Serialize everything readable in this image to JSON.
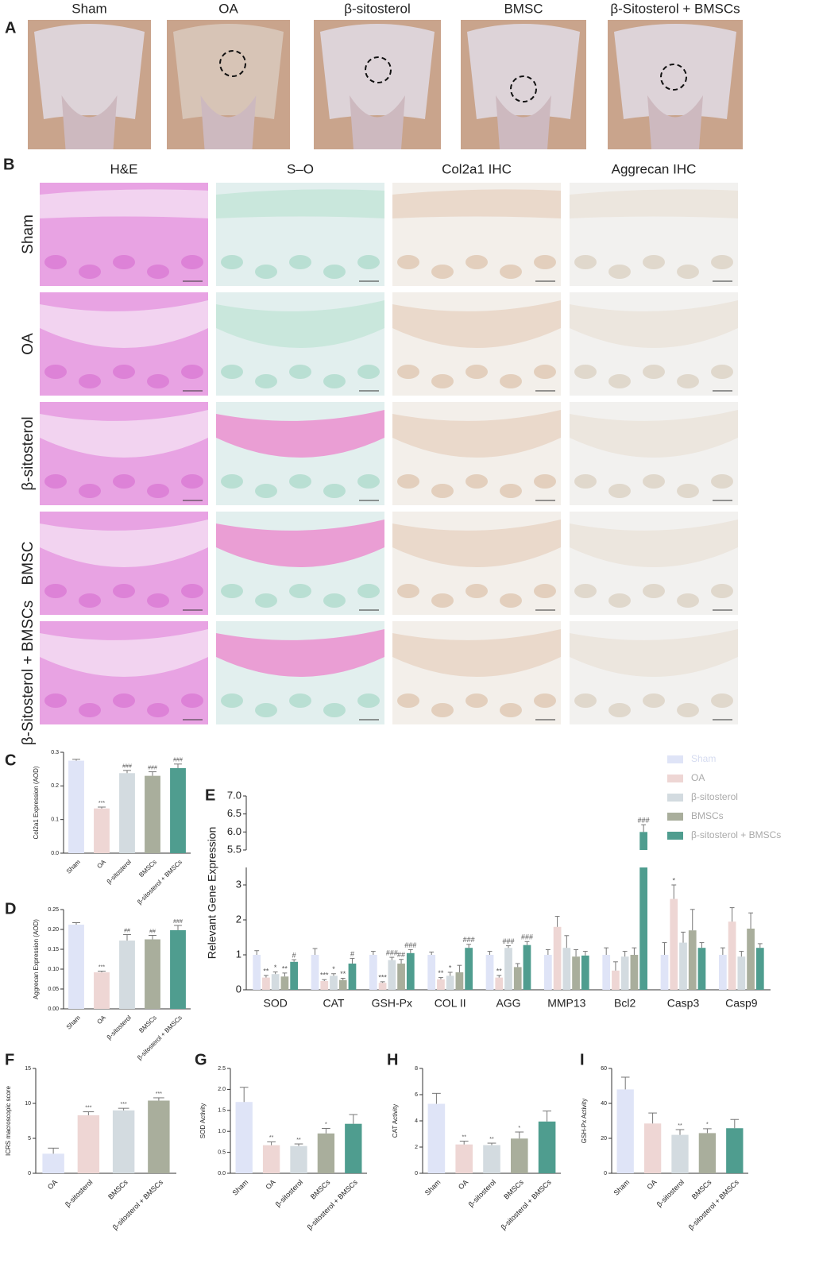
{
  "image_panels": {
    "A": {
      "label": "A",
      "columns": [
        "Sham",
        "OA",
        "β-sitosterol",
        "BMSC",
        "β-Sitosterol + BMSCs"
      ]
    },
    "B": {
      "label": "B",
      "columns": [
        "H&E",
        "S–O",
        "Col2a1 IHC",
        "Aggrecan IHC"
      ],
      "rows": [
        "Sham",
        "OA",
        "β-sitosterol",
        "BMSC",
        "β-Sitosterol + BMSCs"
      ]
    }
  },
  "chart_data": [
    {
      "type": "bar",
      "panel_label": "C",
      "y_label": "Col2a1 Expression (AOD)",
      "categories": [
        "Sham",
        "OA",
        "β-sitosterol",
        "BMSCs",
        "β-sitosterol + BMSCs"
      ],
      "values": [
        0.275,
        0.133,
        0.238,
        0.23,
        0.253
      ],
      "errors": [
        0.004,
        0.004,
        0.008,
        0.012,
        0.012
      ],
      "annotations": [
        null,
        "***",
        "###",
        "###",
        "###"
      ],
      "colors": [
        "#dfe4f7",
        "#eed6d4",
        "#d3dbe0",
        "#a9ae9c",
        "#4f9d8f"
      ],
      "ylim": [
        0,
        0.3
      ],
      "yticks": [
        {
          "value": 0,
          "label": "0.0"
        },
        0.1,
        0.2,
        0.3
      ]
    },
    {
      "type": "bar",
      "panel_label": "D",
      "y_label": "Aggrecan Expression (AOD)",
      "categories": [
        "Sham",
        "OA",
        "β-sitosterol",
        "BMSCs",
        "β-sitosterol + BMSCs"
      ],
      "values": [
        0.212,
        0.092,
        0.172,
        0.175,
        0.198
      ],
      "errors": [
        0.005,
        0.003,
        0.015,
        0.01,
        0.012
      ],
      "annotations": [
        null,
        "***",
        "##",
        "##",
        "###"
      ],
      "colors": [
        "#dfe4f7",
        "#eed6d4",
        "#d3dbe0",
        "#a9ae9c",
        "#4f9d8f"
      ],
      "ylim": [
        0,
        0.25
      ],
      "yticks": [
        {
          "value": 0,
          "label": "0.00"
        },
        0.05,
        {
          "value": 0.1,
          "label": "0.10"
        },
        0.15,
        {
          "value": 0.2,
          "label": "0.20"
        },
        0.25
      ]
    },
    {
      "type": "bar",
      "panel_label": "E",
      "y_label": "Relevant Gene Expression",
      "categories": [
        "SOD",
        "CAT",
        "GSH-Px",
        "COL II",
        "AGG",
        "MMP13",
        "Bcl2",
        "Casp3",
        "Casp9"
      ],
      "series": [
        {
          "name": "Sham",
          "color": "#dfe4f7",
          "values": [
            1,
            1,
            1,
            1,
            1,
            1,
            1,
            1,
            1
          ],
          "errors": [
            0.12,
            0.18,
            0.1,
            0.08,
            0.1,
            0.15,
            0.2,
            0.35,
            0.2
          ],
          "annotations": [
            null,
            null,
            null,
            null,
            null,
            null,
            null,
            null,
            null
          ]
        },
        {
          "name": "OA",
          "color": "#eed6d4",
          "values": [
            0.35,
            0.25,
            0.2,
            0.3,
            0.35,
            1.8,
            0.55,
            2.6,
            1.95
          ],
          "errors": [
            0.06,
            0.04,
            0.03,
            0.05,
            0.06,
            0.3,
            0.25,
            0.4,
            0.4
          ],
          "annotations": [
            "**",
            "***",
            "***",
            "**",
            "**",
            null,
            null,
            "*",
            null
          ]
        },
        {
          "name": "β-sitosterol",
          "color": "#d3dbe0",
          "values": [
            0.45,
            0.4,
            0.85,
            0.4,
            1.2,
            1.2,
            0.95,
            1.35,
            0.95
          ],
          "errors": [
            0.06,
            0.06,
            0.08,
            0.1,
            0.06,
            0.35,
            0.15,
            0.3,
            0.15
          ],
          "annotations": [
            "*",
            "*",
            "###",
            "*",
            "###",
            null,
            null,
            null,
            null
          ]
        },
        {
          "name": "BMSCs",
          "color": "#a9ae9c",
          "values": [
            0.38,
            0.28,
            0.75,
            0.5,
            0.65,
            0.95,
            1,
            1.7,
            1.75
          ],
          "errors": [
            0.1,
            0.05,
            0.12,
            0.2,
            0.1,
            0.2,
            0.2,
            0.6,
            0.45
          ],
          "annotations": [
            "**",
            "**",
            "##",
            null,
            null,
            null,
            null,
            null,
            null
          ]
        },
        {
          "name": "β-sitosterol + BMSCs",
          "color": "#4f9d8f",
          "values": [
            0.8,
            0.75,
            1.05,
            1.2,
            1.28,
            0.98,
            6.0,
            1.2,
            1.2
          ],
          "errors": [
            0.06,
            0.15,
            0.1,
            0.1,
            0.1,
            0.12,
            0.2,
            0.15,
            0.12
          ],
          "annotations": [
            "#",
            "#",
            "###",
            "###",
            "###",
            null,
            "###",
            null,
            null
          ]
        }
      ],
      "ylim": [
        0,
        7
      ],
      "axis_break": [
        3.5,
        5.5
      ],
      "yticks": [
        0,
        1,
        2,
        3,
        5.5,
        {
          "value": 6,
          "label": "6.0"
        },
        6.5,
        {
          "value": 7,
          "label": "7.0"
        }
      ]
    },
    {
      "type": "bar",
      "panel_label": "F",
      "y_label": "ICRS macroscopic score",
      "categories": [
        "OA",
        "β-sitosterol",
        "BMSCs",
        "β-sitosterol + BMSCs"
      ],
      "values": [
        2.8,
        8.3,
        9.0,
        10.4
      ],
      "errors": [
        0.8,
        0.5,
        0.3,
        0.4
      ],
      "annotations": [
        null,
        "***",
        "***",
        "***"
      ],
      "colors": [
        "#dfe4f7",
        "#eed6d4",
        "#d3dbe0",
        "#a9ae9c"
      ],
      "ylim": [
        0,
        15
      ],
      "yticks": [
        0,
        5,
        10,
        15
      ]
    },
    {
      "type": "bar",
      "panel_label": "G",
      "y_label": "SOD Activity",
      "categories": [
        "Sham",
        "OA",
        "β-sitosterol",
        "BMSCs",
        "β-sitosterol + BMSCs"
      ],
      "values": [
        1.7,
        0.67,
        0.65,
        0.95,
        1.18
      ],
      "errors": [
        0.35,
        0.08,
        0.05,
        0.12,
        0.22
      ],
      "annotations": [
        null,
        "**",
        "**",
        "*",
        null
      ],
      "colors": [
        "#dfe4f7",
        "#eed6d4",
        "#d3dbe0",
        "#a9ae9c",
        "#4f9d8f"
      ],
      "ylim": [
        0,
        2.5
      ],
      "yticks": [
        {
          "value": 0,
          "label": "0.0"
        },
        0.5,
        {
          "value": 1,
          "label": "1.0"
        },
        1.5,
        {
          "value": 2,
          "label": "2.0"
        },
        2.5
      ]
    },
    {
      "type": "bar",
      "panel_label": "H",
      "y_label": "CAT Activity",
      "categories": [
        "Sham",
        "OA",
        "β-sitosterol",
        "BMSCs",
        "β-sitosterol + BMSCs"
      ],
      "values": [
        5.3,
        2.2,
        2.15,
        2.65,
        3.95
      ],
      "errors": [
        0.8,
        0.25,
        0.15,
        0.5,
        0.8
      ],
      "annotations": [
        null,
        "**",
        "**",
        "*",
        null
      ],
      "colors": [
        "#dfe4f7",
        "#eed6d4",
        "#d3dbe0",
        "#a9ae9c",
        "#4f9d8f"
      ],
      "ylim": [
        0,
        8
      ],
      "yticks": [
        0,
        2,
        4,
        6,
        8
      ]
    },
    {
      "type": "bar",
      "panel_label": "I",
      "y_label": "GSH-Px Activity",
      "categories": [
        "Sham",
        "OA",
        "β-sitosterol",
        "BMSCs",
        "β-sitosterol + BMSCs"
      ],
      "values": [
        48,
        28.5,
        22,
        23,
        25.8
      ],
      "errors": [
        7,
        6,
        3,
        2.5,
        5
      ],
      "annotations": [
        null,
        null,
        "**",
        "*",
        null
      ],
      "colors": [
        "#dfe4f7",
        "#eed6d4",
        "#d3dbe0",
        "#a9ae9c",
        "#4f9d8f"
      ],
      "ylim": [
        0,
        60
      ],
      "yticks": [
        0,
        20,
        40,
        60
      ]
    }
  ]
}
